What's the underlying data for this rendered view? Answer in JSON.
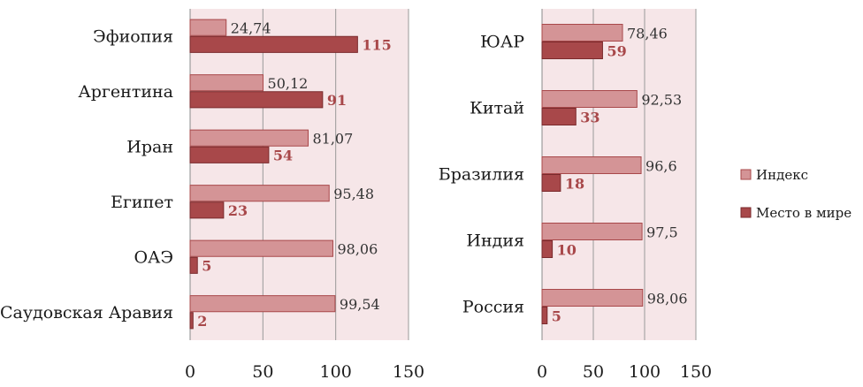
{
  "colors": {
    "index_fill": "#d49496",
    "index_stroke": "#a8484a",
    "rank_fill": "#a8484a",
    "rank_stroke": "#7a2a2c",
    "plot_bg": "#f6e6e8",
    "grid": "#9a9a9a"
  },
  "legend": {
    "index_label": "Индекс",
    "rank_label": "Место в мире"
  },
  "chart_data": [
    {
      "type": "bar",
      "orientation": "horizontal",
      "categories": [
        "Эфиопия",
        "Аргентина",
        "Иран",
        "Египет",
        "ОАЭ",
        "Саудовская Аравия"
      ],
      "series": [
        {
          "name": "Индекс",
          "values": [
            24.74,
            50.12,
            81.07,
            95.48,
            98.06,
            99.54
          ],
          "labels": [
            "24,74",
            "50,12",
            "81,07",
            "95,48",
            "98,06",
            "99,54"
          ]
        },
        {
          "name": "Место в мире",
          "values": [
            115,
            91,
            54,
            23,
            5,
            2
          ],
          "labels": [
            "115",
            "91",
            "54",
            "23",
            "5",
            "2"
          ]
        }
      ],
      "xlim": [
        0,
        150
      ],
      "ticks": [
        0,
        50,
        100,
        150
      ],
      "tick_labels": [
        "0",
        "50",
        "100",
        "150"
      ],
      "grid": true
    },
    {
      "type": "bar",
      "orientation": "horizontal",
      "categories": [
        "ЮАР",
        "Китай",
        "Бразилия",
        "Индия",
        "Россия"
      ],
      "series": [
        {
          "name": "Индекс",
          "values": [
            78.46,
            92.53,
            96.6,
            97.5,
            98.06
          ],
          "labels": [
            "78,46",
            "92,53",
            "96,6",
            "97,5",
            "98,06"
          ]
        },
        {
          "name": "Место в мире",
          "values": [
            59,
            33,
            18,
            10,
            5
          ],
          "labels": [
            "59",
            "33",
            "18",
            "10",
            "5"
          ]
        }
      ],
      "xlim": [
        0,
        150
      ],
      "ticks": [
        0,
        50,
        100,
        150
      ],
      "tick_labels": [
        "0",
        "50",
        "100",
        "150"
      ],
      "grid": true,
      "legend": "right"
    }
  ]
}
